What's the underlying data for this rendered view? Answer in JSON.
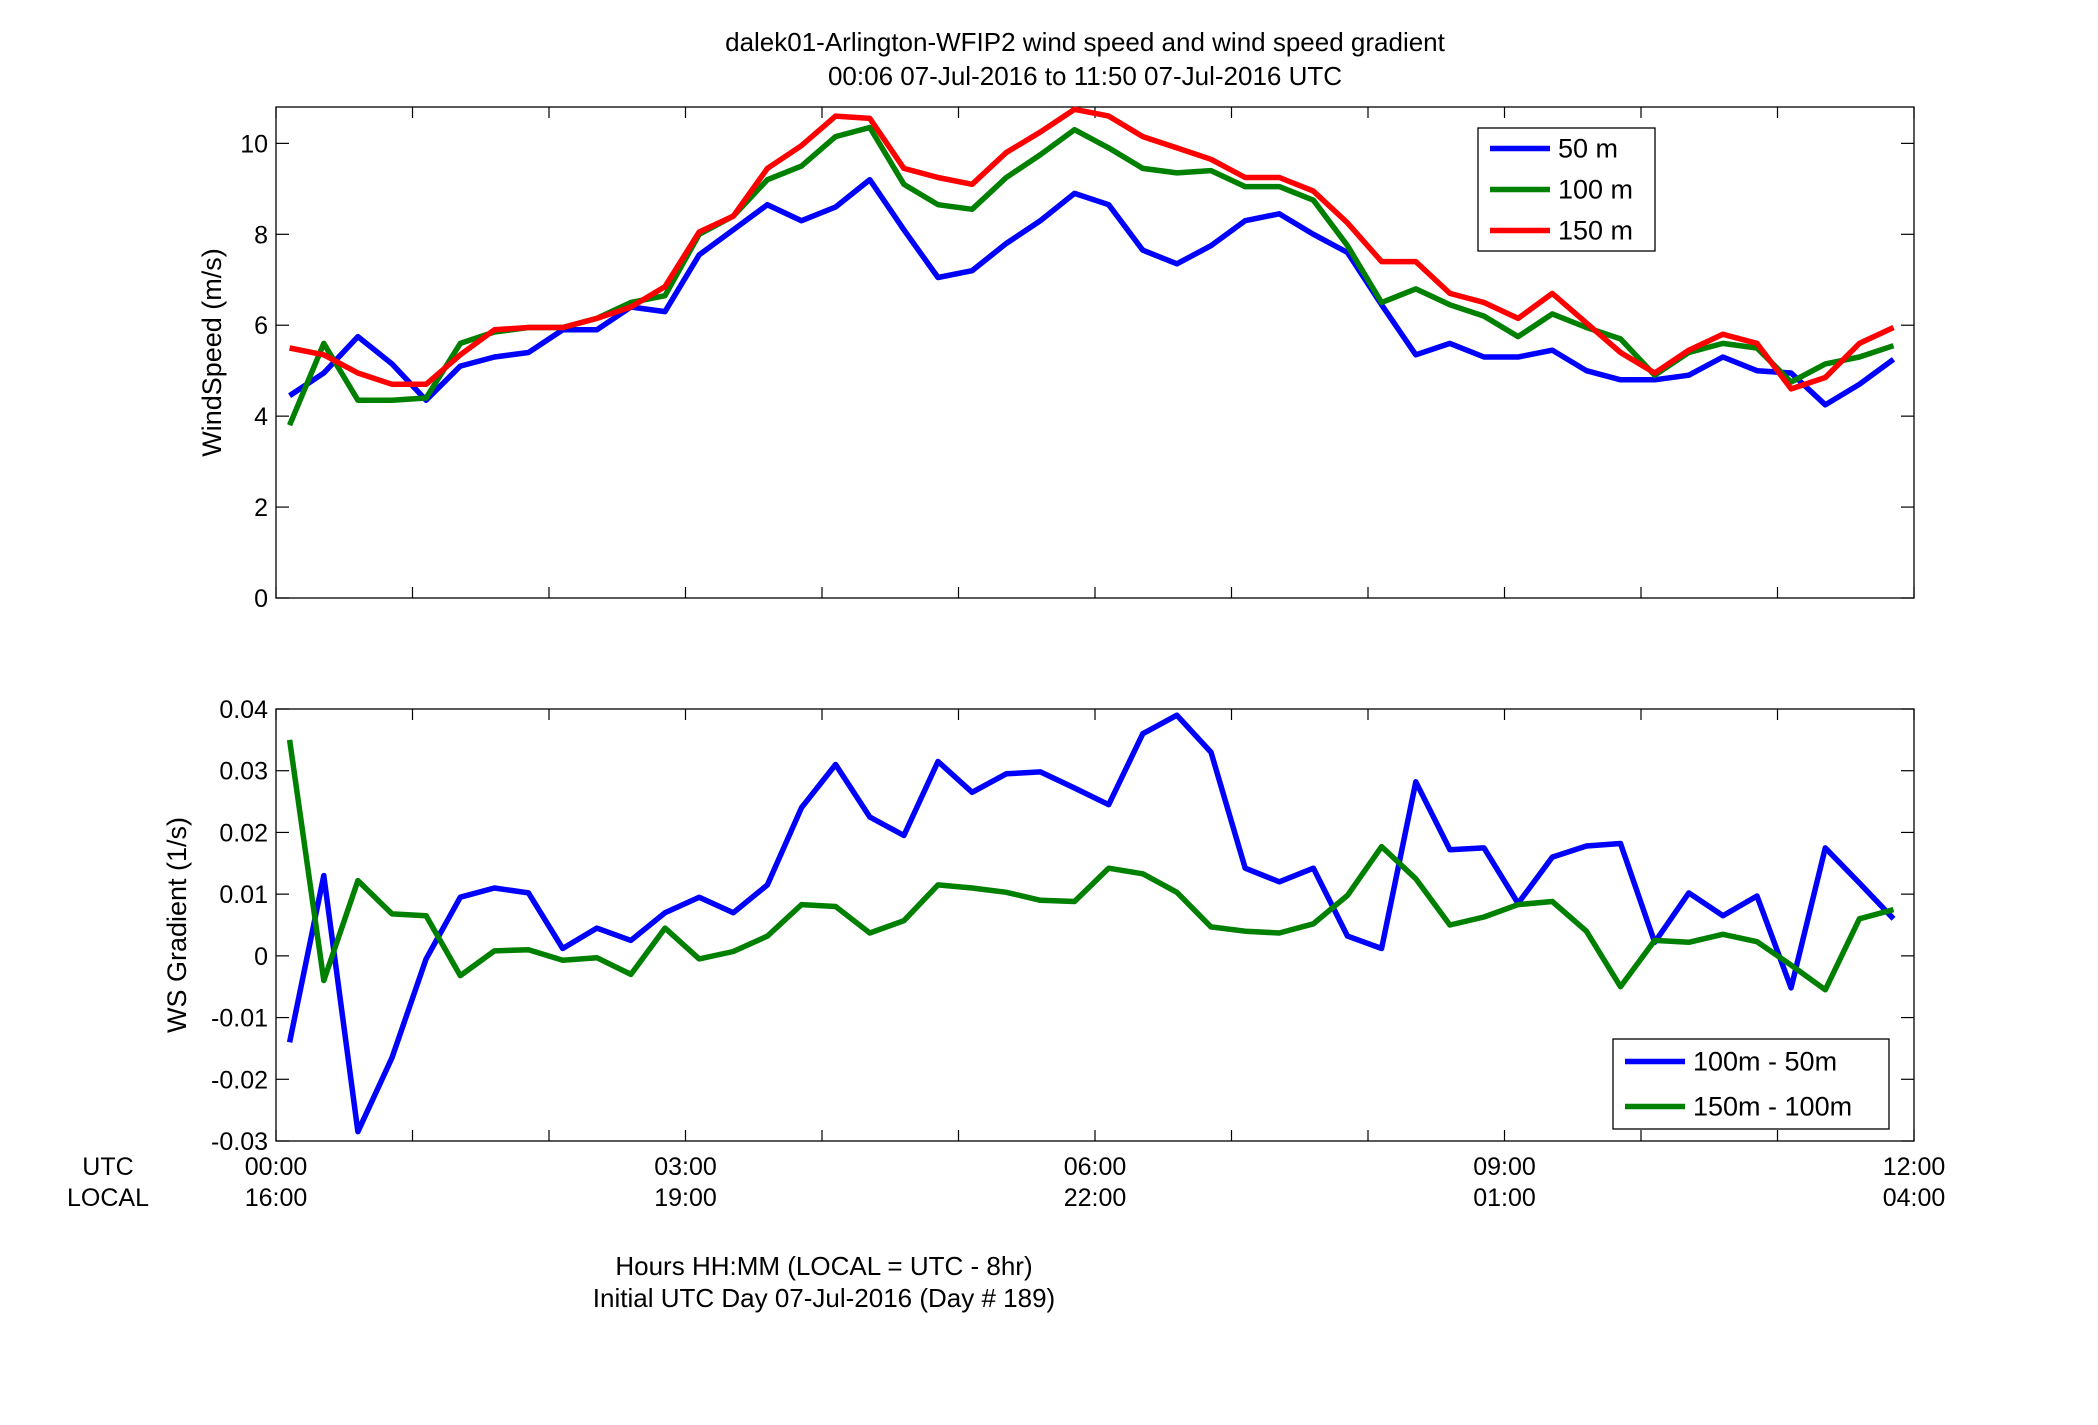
{
  "figure": {
    "title_line1": "dalek01-Arlington-WFIP2  wind speed and wind speed gradient",
    "title_line2": "00:06 07-Jul-2016 to 11:50 07-Jul-2016  UTC",
    "xlabel_line1": "Hours HH:MM  (LOCAL = UTC - 8hr)",
    "xlabel_line2": "Initial UTC Day 07-Jul-2016 (Day # 189)",
    "utc_row_label": "UTC",
    "local_row_label": "LOCAL",
    "utc_ticks": [
      "00:00",
      "03:00",
      "06:00",
      "09:00",
      "12:00"
    ],
    "local_ticks": [
      "16:00",
      "19:00",
      "22:00",
      "01:00",
      "04:00"
    ]
  },
  "chart_data": [
    {
      "type": "line",
      "ylabel": "WindSpeed (m/s)",
      "xlim": [
        0,
        12
      ],
      "ylim": [
        0,
        10.8
      ],
      "yticks": [
        0,
        2,
        4,
        6,
        8,
        10
      ],
      "xticks_hours": [
        0,
        3,
        6,
        9,
        12
      ],
      "grid": false,
      "legend_position": "top-right",
      "x_hours": [
        0.1,
        0.35,
        0.6,
        0.85,
        1.1,
        1.35,
        1.6,
        1.85,
        2.1,
        2.35,
        2.6,
        2.85,
        3.1,
        3.35,
        3.6,
        3.85,
        4.1,
        4.35,
        4.6,
        4.85,
        5.1,
        5.35,
        5.6,
        5.85,
        6.1,
        6.35,
        6.6,
        6.85,
        7.1,
        7.35,
        7.6,
        7.85,
        8.1,
        8.35,
        8.6,
        8.85,
        9.1,
        9.35,
        9.6,
        9.85,
        10.1,
        10.35,
        10.6,
        10.85,
        11.1,
        11.35,
        11.6,
        11.85
      ],
      "series": [
        {
          "name": "50 m",
          "color": "#0000ff",
          "values": [
            4.45,
            4.95,
            5.75,
            5.15,
            4.35,
            5.1,
            5.3,
            5.4,
            5.9,
            5.9,
            6.4,
            6.3,
            7.55,
            8.1,
            8.65,
            8.3,
            8.6,
            9.2,
            8.1,
            7.05,
            7.2,
            7.8,
            8.3,
            8.9,
            8.65,
            7.65,
            7.35,
            7.75,
            8.3,
            8.45,
            8.0,
            7.6,
            6.45,
            5.35,
            5.6,
            5.3,
            5.3,
            5.45,
            5.0,
            4.8,
            4.8,
            4.9,
            5.3,
            5.0,
            4.95,
            4.25,
            4.7,
            5.25
          ]
        },
        {
          "name": "100 m",
          "color": "#008000",
          "values": [
            3.8,
            5.6,
            4.35,
            4.35,
            4.4,
            5.6,
            5.85,
            5.95,
            5.95,
            6.15,
            6.5,
            6.65,
            8.0,
            8.4,
            9.2,
            9.5,
            10.15,
            10.35,
            9.1,
            8.65,
            8.55,
            9.25,
            9.75,
            10.3,
            9.9,
            9.45,
            9.35,
            9.4,
            9.05,
            9.05,
            8.75,
            7.75,
            6.5,
            6.8,
            6.45,
            6.2,
            5.75,
            6.25,
            5.95,
            5.7,
            4.9,
            5.4,
            5.6,
            5.5,
            4.75,
            5.15,
            5.3,
            5.55
          ]
        },
        {
          "name": "150 m",
          "color": "#ff0000",
          "values": [
            5.5,
            5.35,
            4.95,
            4.7,
            4.7,
            5.35,
            5.9,
            5.95,
            5.95,
            6.15,
            6.4,
            6.85,
            8.05,
            8.4,
            9.45,
            9.95,
            10.6,
            10.55,
            9.45,
            9.25,
            9.1,
            9.8,
            10.25,
            10.75,
            10.6,
            10.15,
            9.9,
            9.65,
            9.25,
            9.25,
            8.95,
            8.25,
            7.4,
            7.4,
            6.7,
            6.5,
            6.15,
            6.7,
            6.05,
            5.4,
            4.95,
            5.45,
            5.8,
            5.6,
            4.6,
            4.85,
            5.6,
            5.95
          ]
        }
      ]
    },
    {
      "type": "line",
      "ylabel": "WS Gradient (1/s)",
      "xlim": [
        0,
        12
      ],
      "ylim": [
        -0.03,
        0.04
      ],
      "yticks": [
        -0.03,
        -0.02,
        -0.01,
        0,
        0.01,
        0.02,
        0.03,
        0.04
      ],
      "ytick_labels": [
        "-0.03",
        "-0.02",
        "-0.01",
        "0",
        "0.01",
        "0.02",
        "0.03",
        "0.04"
      ],
      "xticks_hours": [
        0,
        3,
        6,
        9,
        12
      ],
      "grid": false,
      "legend_position": "bottom-right",
      "x_hours": [
        0.1,
        0.35,
        0.6,
        0.85,
        1.1,
        1.35,
        1.6,
        1.85,
        2.1,
        2.35,
        2.6,
        2.85,
        3.1,
        3.35,
        3.6,
        3.85,
        4.1,
        4.35,
        4.6,
        4.85,
        5.1,
        5.35,
        5.6,
        5.85,
        6.1,
        6.35,
        6.6,
        6.85,
        7.1,
        7.35,
        7.6,
        7.85,
        8.1,
        8.35,
        8.6,
        8.85,
        9.1,
        9.35,
        9.6,
        9.85,
        10.1,
        10.35,
        10.6,
        10.85,
        11.1,
        11.35,
        11.6,
        11.85
      ],
      "series": [
        {
          "name": "100m - 50m",
          "color": "#0000ff",
          "values": [
            -0.014,
            0.013,
            -0.0285,
            -0.0165,
            -0.0005,
            0.0095,
            0.011,
            0.0102,
            0.0012,
            0.0045,
            0.0025,
            0.007,
            0.0095,
            0.007,
            0.0115,
            0.024,
            0.031,
            0.0225,
            0.0195,
            0.0315,
            0.0265,
            0.0295,
            0.0298,
            0.0272,
            0.0245,
            0.036,
            0.039,
            0.033,
            0.0142,
            0.012,
            0.0142,
            0.0032,
            0.0012,
            0.0282,
            0.0172,
            0.0175,
            0.0085,
            0.016,
            0.0178,
            0.0182,
            0.0022,
            0.0102,
            0.0065,
            0.0097,
            -0.0052,
            0.0175,
            0.0118,
            0.006
          ]
        },
        {
          "name": "150m - 100m",
          "color": "#008000",
          "values": [
            0.035,
            -0.004,
            0.0122,
            0.0068,
            0.0065,
            -0.0032,
            0.0008,
            0.001,
            -0.0007,
            -0.0003,
            -0.003,
            0.0045,
            -0.0005,
            0.0007,
            0.0032,
            0.0083,
            0.008,
            0.0037,
            0.0057,
            0.0115,
            0.011,
            0.0103,
            0.009,
            0.0088,
            0.0142,
            0.0133,
            0.0103,
            0.0047,
            0.004,
            0.0037,
            0.0052,
            0.0098,
            0.0177,
            0.0125,
            0.005,
            0.0063,
            0.0083,
            0.0088,
            0.004,
            -0.005,
            0.0025,
            0.0022,
            0.0035,
            0.0023,
            -0.0015,
            -0.0055,
            0.006,
            0.0075
          ]
        }
      ]
    }
  ]
}
